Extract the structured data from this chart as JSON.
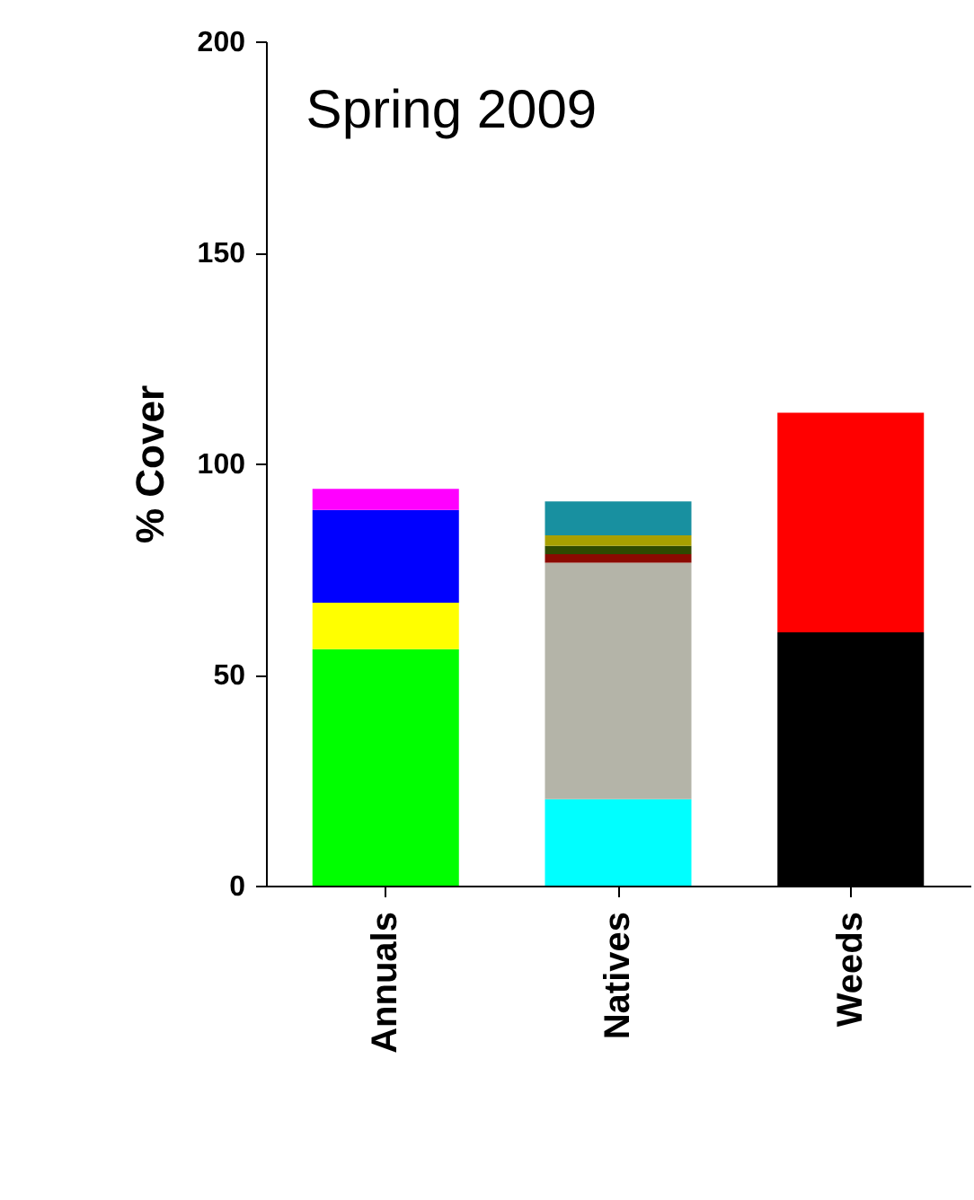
{
  "chart_data": {
    "type": "bar",
    "title": "Spring 2009",
    "ylabel": "% Cover",
    "categories": [
      "Annuals",
      "Natives",
      "Weeds"
    ],
    "stacked": true,
    "ylim": [
      0,
      200
    ],
    "yticks": [
      0,
      50,
      100,
      150,
      200
    ],
    "series": [
      {
        "color": "#00ff00",
        "values": [
          56,
          null,
          null
        ]
      },
      {
        "color": "#ffff00",
        "values": [
          11,
          null,
          null
        ]
      },
      {
        "color": "#0000ff",
        "values": [
          22,
          null,
          null
        ]
      },
      {
        "color": "#ff00ff",
        "values": [
          5,
          null,
          null
        ]
      },
      {
        "color": "#00ffff",
        "values": [
          null,
          20.5,
          null
        ]
      },
      {
        "color": "#b4b4a8",
        "values": [
          null,
          56,
          null
        ]
      },
      {
        "color": "#8b0a00",
        "values": [
          null,
          2,
          null
        ]
      },
      {
        "color": "#2f4a00",
        "values": [
          null,
          2,
          null
        ]
      },
      {
        "color": "#a8a000",
        "values": [
          null,
          2.5,
          null
        ]
      },
      {
        "color": "#1890a0",
        "values": [
          null,
          8,
          null
        ]
      },
      {
        "color": "#000000",
        "values": [
          null,
          null,
          60
        ]
      },
      {
        "color": "#ff0000",
        "values": [
          null,
          null,
          52
        ]
      }
    ]
  }
}
